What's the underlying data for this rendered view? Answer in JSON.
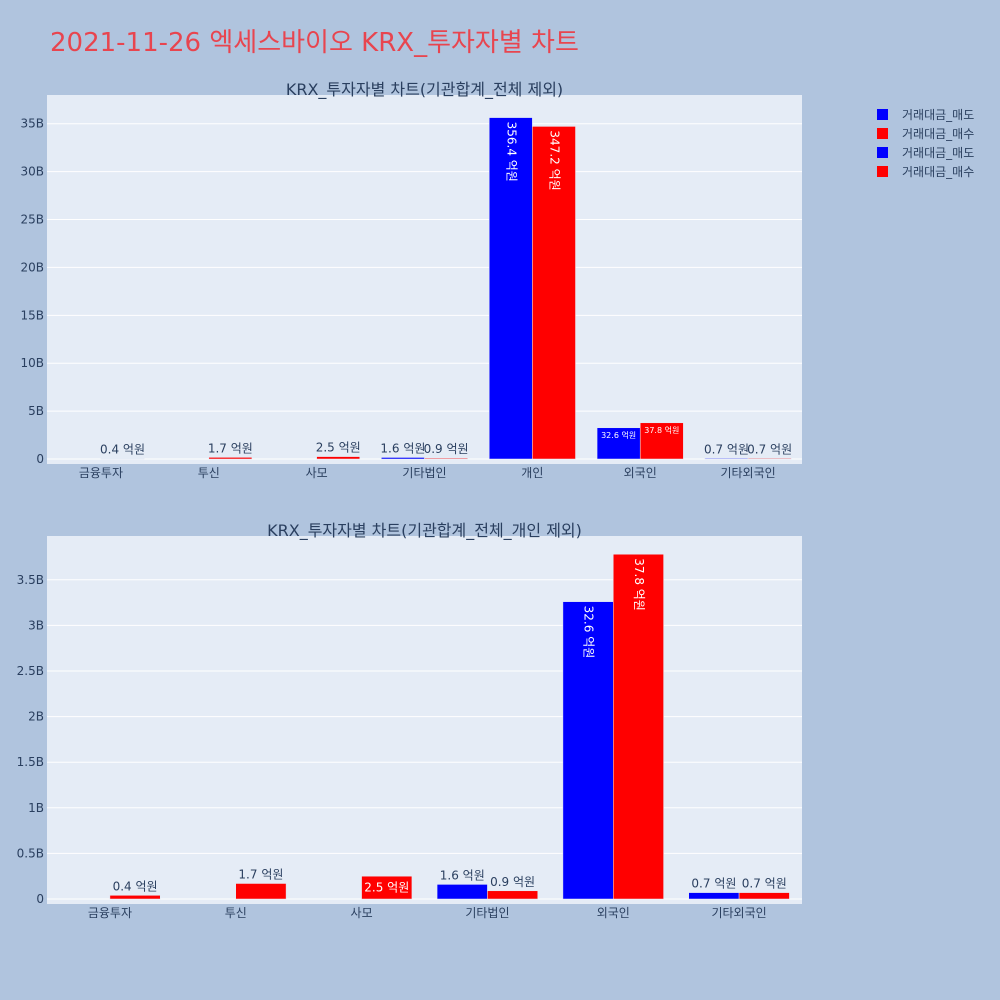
{
  "page": {
    "title": "2021-11-26 엑세스바이오 KRX_투자자별 차트"
  },
  "legend": {
    "items": [
      {
        "label": "거래대금_매도",
        "color": "#0000ff"
      },
      {
        "label": "거래대금_매수",
        "color": "#ff0000"
      },
      {
        "label": "거래대금_매도",
        "color": "#0000ff"
      },
      {
        "label": "거래대금_매수",
        "color": "#ff0000"
      }
    ]
  },
  "chart_data": [
    {
      "type": "bar",
      "title": "KRX_투자자별 차트(기관합계_전체 제외)",
      "categories": [
        "금융투자",
        "투신",
        "사모",
        "기타법인",
        "개인",
        "외국인",
        "기타외국인"
      ],
      "ytick_values": [
        0,
        5000000000,
        10000000000,
        15000000000,
        20000000000,
        25000000000,
        30000000000,
        35000000000
      ],
      "ytick_labels": [
        "0",
        "5B",
        "10B",
        "15B",
        "20B",
        "25B",
        "30B",
        "35B"
      ],
      "ylim": [
        0,
        38000000000
      ],
      "series": [
        {
          "name": "거래대금_매도",
          "color": "#0000ff",
          "values": [
            0,
            0,
            0,
            160000000,
            35640000000,
            3260000000,
            70000000
          ],
          "labels": [
            "",
            "",
            "",
            "1.6 억원",
            "356.4 억원",
            "32.6 억원",
            "0.7 억원"
          ]
        },
        {
          "name": "거래대금_매수",
          "color": "#ff0000",
          "values": [
            40000000,
            170000000,
            250000000,
            90000000,
            34720000000,
            3780000000,
            70000000
          ],
          "labels": [
            "0.4 억원",
            "1.7 억원",
            "2.5 억원",
            "0.9 억원",
            "347.2 억원",
            "37.8 억원",
            "0.7 억원"
          ]
        }
      ]
    },
    {
      "type": "bar",
      "title": "KRX_투자자별 차트(기관합계_전체_개인 제외)",
      "categories": [
        "금융투자",
        "투신",
        "사모",
        "기타법인",
        "외국인",
        "기타외국인"
      ],
      "ytick_values": [
        0,
        500000000,
        1000000000,
        1500000000,
        2000000000,
        2500000000,
        3000000000,
        3500000000
      ],
      "ytick_labels": [
        "0",
        "0.5B",
        "1B",
        "1.5B",
        "2B",
        "2.5B",
        "3B",
        "3.5B"
      ],
      "ylim": [
        0,
        3980000000
      ],
      "series": [
        {
          "name": "거래대금_매도",
          "color": "#0000ff",
          "values": [
            0,
            0,
            0,
            160000000,
            3260000000,
            70000000
          ],
          "labels": [
            "",
            "",
            "",
            "1.6 억원",
            "32.6 억원",
            "0.7 억원"
          ]
        },
        {
          "name": "거래대금_매수",
          "color": "#ff0000",
          "values": [
            40000000,
            170000000,
            250000000,
            90000000,
            3780000000,
            70000000
          ],
          "labels": [
            "0.4 억원",
            "1.7 억원",
            "2.5 억원",
            "0.9 억원",
            "37.8 억원",
            "0.7 억원"
          ]
        }
      ]
    }
  ]
}
